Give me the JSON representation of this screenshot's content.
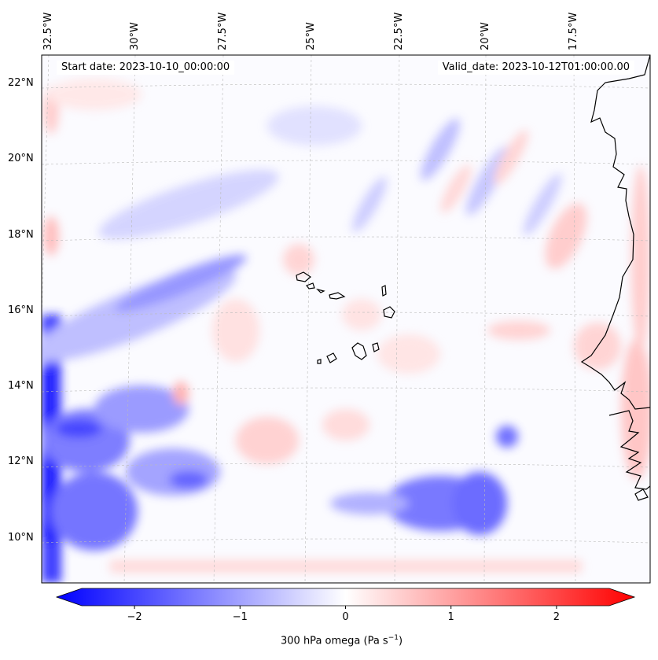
{
  "map": {
    "start_date": "Start date: 2023-10-10_00:00:00",
    "valid_date": "Valid_date: 2023-10-12T01:00:00.00",
    "lat_labels": [
      "22°N",
      "20°N",
      "18°N",
      "16°N",
      "14°N",
      "12°N",
      "10°N"
    ],
    "lon_labels": [
      "32.5°W",
      "30°W",
      "27.5°W",
      "25°W",
      "22.5°W",
      "20°W",
      "17.5°W"
    ],
    "variable": "300 hPa omega (Pa s",
    "unit_suffix": ")",
    "unit_exponent": "−1",
    "colorbar": {
      "colormap": "bwr",
      "ticks": [
        "−2",
        "−1",
        "0",
        "1",
        "2"
      ],
      "tick_values": [
        -2,
        -1,
        0,
        1,
        2
      ],
      "range": [
        -2.5,
        2.5
      ]
    },
    "colors": {
      "negative": "#0000ff",
      "zero": "#ffffff",
      "positive": "#ff0000",
      "coastline": "#000000"
    }
  }
}
